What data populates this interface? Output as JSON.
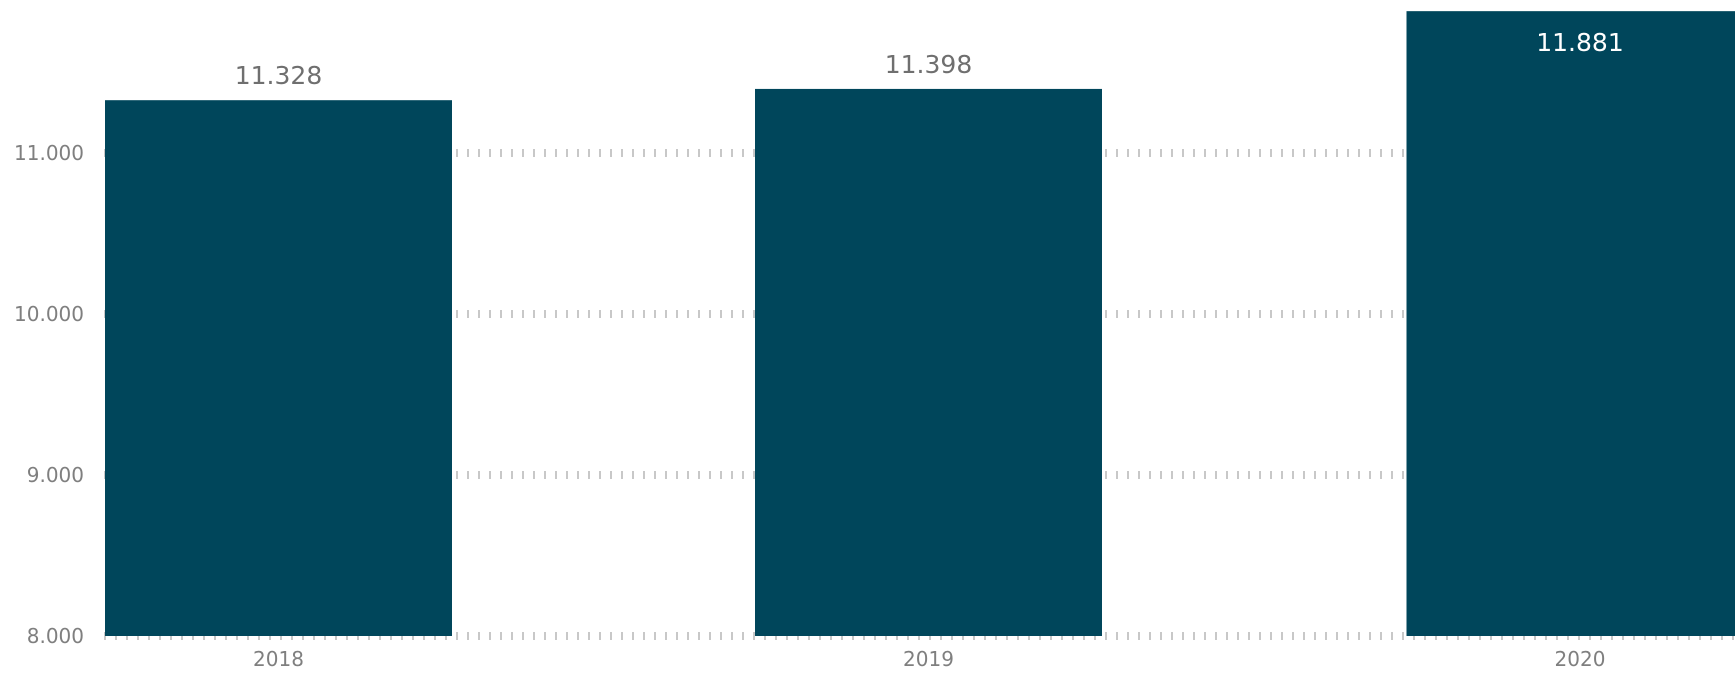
{
  "chart_data": {
    "type": "bar",
    "categories": [
      "2018",
      "2019",
      "2020"
    ],
    "values": [
      11328,
      11398,
      11881
    ],
    "value_labels": [
      "11.328",
      "11.398",
      "11.881"
    ],
    "title": "",
    "xlabel": "",
    "ylabel": "",
    "ylim": [
      8000,
      11881
    ],
    "y_ticks": [
      8000,
      9000,
      10000,
      11000
    ],
    "y_tick_labels": [
      "8.000",
      "9.000",
      "10.000",
      "11.000"
    ],
    "grid": true,
    "grid_style": "dotted",
    "legend": "none"
  },
  "colors": {
    "bar": "#00465b",
    "grid": "#c8c8c8",
    "axis_text": "#7f7f7f",
    "value_text": "#6f6f6f",
    "value_text_inside": "#ffffff"
  }
}
